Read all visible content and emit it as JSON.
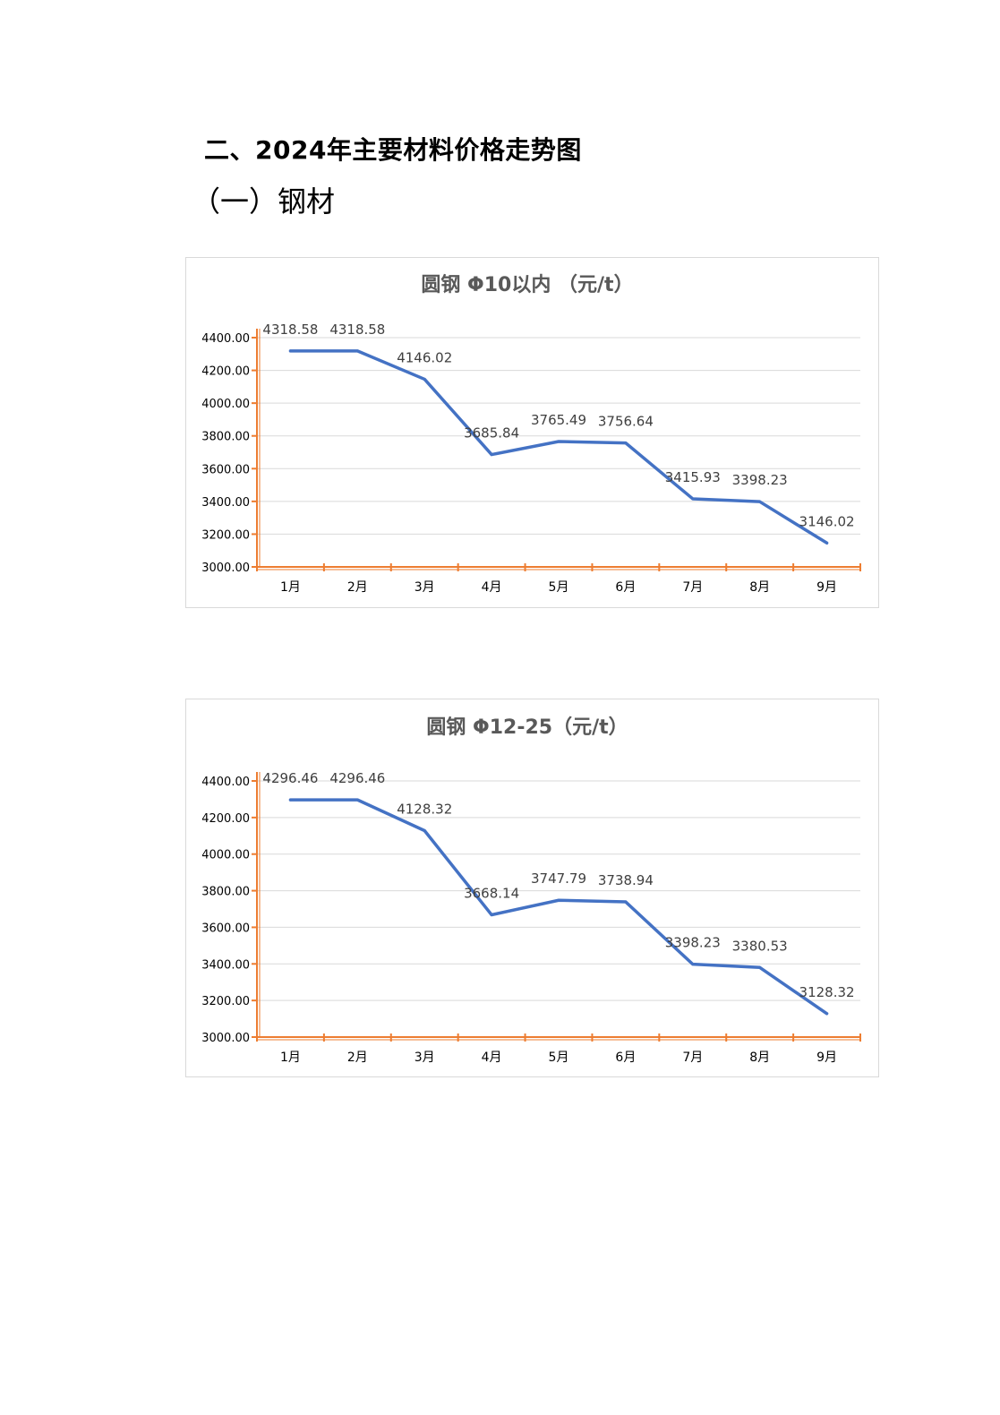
{
  "page": {
    "heading": "二、2024年主要材料价格走势图",
    "subheading": "（一）钢材"
  },
  "chart_data": [
    {
      "type": "line",
      "title": "圆钢 Φ10以内 （元/t）",
      "categories": [
        "1月",
        "2月",
        "3月",
        "4月",
        "5月",
        "6月",
        "7月",
        "8月",
        "9月"
      ],
      "values": [
        4318.58,
        4318.58,
        4146.02,
        3685.84,
        3765.49,
        3756.64,
        3415.93,
        3398.23,
        3146.02
      ],
      "data_labels": [
        "4318.58",
        "4318.58",
        "4146.02",
        "3685.84",
        "3765.49",
        "3756.64",
        "3415.93",
        "3398.23",
        "3146.02"
      ],
      "yticks": [
        3000,
        3200,
        3400,
        3600,
        3800,
        4000,
        4200,
        4400
      ],
      "ytick_labels": [
        "3000.00",
        "3200.00",
        "3400.00",
        "3600.00",
        "3800.00",
        "4000.00",
        "4200.00",
        "4400.00"
      ],
      "ylim": [
        3000,
        4400
      ],
      "line_color": "#4472c4",
      "axis_color": "#ed7d31",
      "grid": true,
      "legend": "none"
    },
    {
      "type": "line",
      "title": "圆钢 Φ12-25（元/t）",
      "categories": [
        "1月",
        "2月",
        "3月",
        "4月",
        "5月",
        "6月",
        "7月",
        "8月",
        "9月"
      ],
      "values": [
        4296.46,
        4296.46,
        4128.32,
        3668.14,
        3747.79,
        3738.94,
        3398.23,
        3380.53,
        3128.32
      ],
      "data_labels": [
        "4296.46",
        "4296.46",
        "4128.32",
        "3668.14",
        "3747.79",
        "3738.94",
        "3398.23",
        "3380.53",
        "3128.32"
      ],
      "yticks": [
        3000,
        3200,
        3400,
        3600,
        3800,
        4000,
        4200,
        4400
      ],
      "ytick_labels": [
        "3000.00",
        "3200.00",
        "3400.00",
        "3600.00",
        "3800.00",
        "4000.00",
        "4200.00",
        "4400.00"
      ],
      "ylim": [
        3000,
        4400
      ],
      "line_color": "#4472c4",
      "axis_color": "#ed7d31",
      "grid": true,
      "legend": "none"
    }
  ]
}
